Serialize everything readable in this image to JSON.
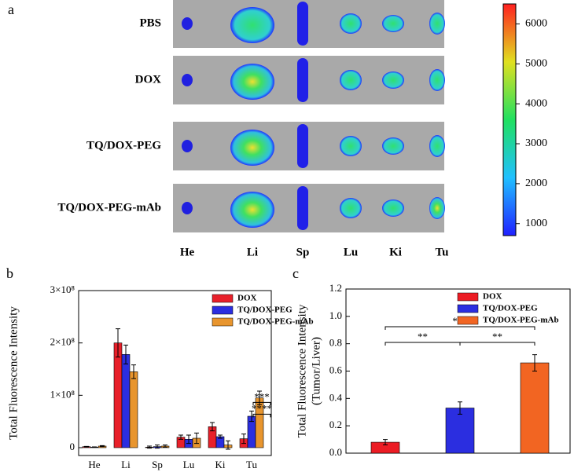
{
  "panel_labels": [
    "a",
    "b",
    "c"
  ],
  "imaging": {
    "rows": [
      "PBS",
      "DOX",
      "TQ/DOX-PEG",
      "TQ/DOX-PEG-mAb"
    ],
    "columns": [
      "He",
      "Li",
      "Sp",
      "Lu",
      "Ki",
      "Tu"
    ],
    "colorbar": {
      "ylim": [
        700,
        6500
      ],
      "yticks": [
        1000,
        2000,
        3000,
        4000,
        5000,
        6000
      ]
    }
  },
  "chart_data": [
    {
      "type": "bar",
      "y_label": "Total Fluorescence Intensity",
      "categories": [
        "He",
        "Li",
        "Sp",
        "Lu",
        "Ki",
        "Tu"
      ],
      "ylim": [
        -15000000,
        300000000
      ],
      "yticks": [
        0,
        {
          "value": 100000000,
          "label": "1×10⁸"
        },
        {
          "value": 200000000,
          "label": "2×10⁸"
        },
        {
          "value": 300000000,
          "label": "3×10⁸"
        }
      ],
      "series": [
        {
          "name": "DOX",
          "color": "#e8202a",
          "values": [
            2000000,
            200000000,
            1000000,
            20000000,
            40000000,
            17000000
          ],
          "errors": [
            500000,
            27000000,
            2000000,
            4000000,
            8000000,
            9000000
          ]
        },
        {
          "name": "TQ/DOX-PEG",
          "color": "#2b2ee0",
          "values": [
            1000000,
            178000000,
            2000000,
            16000000,
            21000000,
            60000000
          ],
          "errors": [
            500000,
            18000000,
            3000000,
            8000000,
            3000000,
            10000000
          ]
        },
        {
          "name": "TQ/DOX-PEG-mAb",
          "color": "#e8952e",
          "values": [
            3000000,
            145000000,
            3000000,
            18000000,
            5000000,
            95000000
          ],
          "errors": [
            1000000,
            13000000,
            2000000,
            10000000,
            8000000,
            13000000
          ]
        }
      ],
      "annotations": [
        "***",
        "****"
      ]
    },
    {
      "type": "bar",
      "y_label": [
        "Total Fluorescence Intensity",
        "(Tumor/Liver)"
      ],
      "ylim": [
        0,
        1.2
      ],
      "yticks": [
        {
          "value": 0,
          "label": "0.0"
        },
        0.2,
        0.4,
        0.6,
        0.8,
        {
          "value": 1,
          "label": "1.0"
        },
        {
          "value": 1.2,
          "label": "1.2"
        }
      ],
      "series": [
        {
          "name": "DOX",
          "color": "#ec1c24",
          "values": [
            0.08
          ],
          "errors": [
            0.02
          ]
        },
        {
          "name": "TQ/DOX-PEG",
          "color": "#2b2ee0",
          "values": [
            0.33
          ],
          "errors": [
            0.045
          ]
        },
        {
          "name": "TQ/DOX-PEG-mAb",
          "color": "#f26522",
          "values": [
            0.66
          ],
          "errors": [
            0.06
          ]
        }
      ],
      "annotations": [
        "**",
        "***",
        "**"
      ]
    }
  ]
}
